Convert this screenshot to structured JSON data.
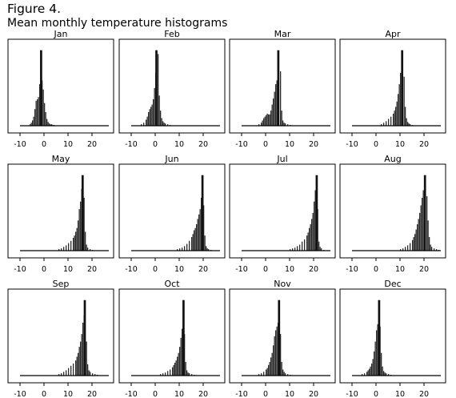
{
  "figure": {
    "label": "Figure 4.",
    "title": "Mean monthly temperature histograms"
  },
  "colors": {
    "bar": "#2b2b2b",
    "frame": "#000000",
    "baseline": "#000000"
  },
  "chart_data": {
    "type": "bar",
    "layout": "small-multiples",
    "x_ticks": [
      -10,
      0,
      10,
      20
    ],
    "x_tick_labels": [
      "-10",
      "0",
      "10",
      "20"
    ],
    "xlim": [
      -15,
      29
    ],
    "baseline_range": [
      -10,
      27
    ],
    "bin_width": 0.5,
    "ylim": [
      0,
      1.05
    ],
    "value_scale": "relative frequency (peak = 1.0, estimated)",
    "xlabel": "",
    "ylabel": "",
    "panels": [
      {
        "title": "Jan",
        "peak_x": -1.2,
        "peak_h": 1.0,
        "bins": [
          [
            -6.0,
            0.02
          ],
          [
            -5.5,
            0.04
          ],
          [
            -5.0,
            0.07
          ],
          [
            -4.5,
            0.12
          ],
          [
            -4.0,
            0.22
          ],
          [
            -3.5,
            0.33
          ],
          [
            -3.0,
            0.35
          ],
          [
            -2.5,
            0.38
          ],
          [
            -2.0,
            0.55
          ],
          [
            -1.5,
            0.72
          ],
          [
            -1.0,
            0.6
          ],
          [
            -0.5,
            0.48
          ],
          [
            0.0,
            0.3
          ],
          [
            0.5,
            0.18
          ],
          [
            1.0,
            0.09
          ],
          [
            1.5,
            0.05
          ],
          [
            2.0,
            0.03
          ],
          [
            2.5,
            0.02
          ],
          [
            3.0,
            0.02
          ],
          [
            3.5,
            0.01
          ],
          [
            4.0,
            0.01
          ]
        ]
      },
      {
        "title": "Feb",
        "peak_x": 0.5,
        "peak_h": 1.0,
        "bins": [
          [
            -6.0,
            0.02
          ],
          [
            -5.0,
            0.04
          ],
          [
            -4.0,
            0.08
          ],
          [
            -3.5,
            0.12
          ],
          [
            -3.0,
            0.18
          ],
          [
            -2.5,
            0.22
          ],
          [
            -2.0,
            0.25
          ],
          [
            -1.5,
            0.28
          ],
          [
            -1.0,
            0.35
          ],
          [
            -0.5,
            0.5
          ],
          [
            0.0,
            0.7
          ],
          [
            1.0,
            0.95
          ],
          [
            1.5,
            0.4
          ],
          [
            2.0,
            0.2
          ],
          [
            2.5,
            0.1
          ],
          [
            3.0,
            0.06
          ],
          [
            3.5,
            0.04
          ],
          [
            4.0,
            0.03
          ],
          [
            5.0,
            0.02
          ],
          [
            6.0,
            0.01
          ]
        ]
      },
      {
        "title": "Mar",
        "peak_x": 5.3,
        "peak_h": 1.0,
        "bins": [
          [
            -3.0,
            0.02
          ],
          [
            -2.0,
            0.04
          ],
          [
            -1.5,
            0.07
          ],
          [
            -1.0,
            0.1
          ],
          [
            -0.5,
            0.12
          ],
          [
            0.0,
            0.14
          ],
          [
            0.5,
            0.16
          ],
          [
            1.0,
            0.15
          ],
          [
            1.5,
            0.15
          ],
          [
            2.0,
            0.2
          ],
          [
            2.5,
            0.28
          ],
          [
            3.0,
            0.36
          ],
          [
            3.5,
            0.45
          ],
          [
            4.0,
            0.55
          ],
          [
            4.5,
            0.6
          ],
          [
            5.0,
            0.85
          ],
          [
            6.0,
            0.72
          ],
          [
            6.5,
            0.2
          ],
          [
            7.0,
            0.07
          ],
          [
            7.5,
            0.04
          ],
          [
            8.0,
            0.03
          ],
          [
            9.0,
            0.02
          ],
          [
            10.0,
            0.01
          ]
        ]
      },
      {
        "title": "Apr",
        "peak_x": 10.9,
        "peak_h": 1.0,
        "bins": [
          [
            2.0,
            0.02
          ],
          [
            3.0,
            0.04
          ],
          [
            4.0,
            0.06
          ],
          [
            5.0,
            0.09
          ],
          [
            6.0,
            0.12
          ],
          [
            7.0,
            0.16
          ],
          [
            7.5,
            0.2
          ],
          [
            8.0,
            0.25
          ],
          [
            8.5,
            0.32
          ],
          [
            9.0,
            0.42
          ],
          [
            9.5,
            0.55
          ],
          [
            10.0,
            0.7
          ],
          [
            10.5,
            0.75
          ],
          [
            11.5,
            0.65
          ],
          [
            12.0,
            0.25
          ],
          [
            12.5,
            0.1
          ],
          [
            13.0,
            0.05
          ],
          [
            13.5,
            0.03
          ],
          [
            14.0,
            0.02
          ],
          [
            15.0,
            0.01
          ]
        ]
      },
      {
        "title": "May",
        "peak_x": 16.1,
        "peak_h": 1.0,
        "bins": [
          [
            6.0,
            0.02
          ],
          [
            7.0,
            0.03
          ],
          [
            8.0,
            0.05
          ],
          [
            9.0,
            0.07
          ],
          [
            10.0,
            0.1
          ],
          [
            11.0,
            0.13
          ],
          [
            12.0,
            0.17
          ],
          [
            12.5,
            0.2
          ],
          [
            13.0,
            0.25
          ],
          [
            13.5,
            0.3
          ],
          [
            14.0,
            0.4
          ],
          [
            14.5,
            0.55
          ],
          [
            15.0,
            0.65
          ],
          [
            15.5,
            0.82
          ],
          [
            16.5,
            0.7
          ],
          [
            17.0,
            0.25
          ],
          [
            17.5,
            0.08
          ],
          [
            18.0,
            0.04
          ],
          [
            19.0,
            0.02
          ],
          [
            20.0,
            0.01
          ]
        ]
      },
      {
        "title": "Jun",
        "peak_x": 19.7,
        "peak_h": 1.0,
        "bins": [
          [
            9.0,
            0.02
          ],
          [
            10.0,
            0.03
          ],
          [
            11.0,
            0.04
          ],
          [
            12.0,
            0.06
          ],
          [
            13.0,
            0.09
          ],
          [
            14.0,
            0.13
          ],
          [
            15.0,
            0.18
          ],
          [
            15.5,
            0.22
          ],
          [
            16.0,
            0.27
          ],
          [
            16.5,
            0.3
          ],
          [
            17.0,
            0.35
          ],
          [
            17.5,
            0.42
          ],
          [
            18.0,
            0.48
          ],
          [
            18.5,
            0.55
          ],
          [
            19.0,
            0.7
          ],
          [
            19.5,
            0.85
          ],
          [
            20.0,
            0.6
          ],
          [
            20.5,
            0.2
          ],
          [
            21.0,
            0.06
          ],
          [
            21.5,
            0.03
          ],
          [
            22.0,
            0.02
          ],
          [
            23.0,
            0.01
          ]
        ]
      },
      {
        "title": "Jul",
        "peak_x": 21.3,
        "peak_h": 1.0,
        "bins": [
          [
            10.0,
            0.02
          ],
          [
            11.0,
            0.03
          ],
          [
            12.0,
            0.04
          ],
          [
            13.0,
            0.06
          ],
          [
            14.0,
            0.08
          ],
          [
            15.0,
            0.12
          ],
          [
            16.0,
            0.15
          ],
          [
            17.0,
            0.2
          ],
          [
            17.5,
            0.24
          ],
          [
            18.0,
            0.3
          ],
          [
            18.5,
            0.35
          ],
          [
            19.0,
            0.42
          ],
          [
            19.5,
            0.5
          ],
          [
            20.0,
            0.65
          ],
          [
            20.5,
            0.8
          ],
          [
            21.0,
            0.85
          ],
          [
            21.5,
            0.55
          ],
          [
            22.0,
            0.12
          ],
          [
            22.5,
            0.05
          ],
          [
            23.0,
            0.03
          ],
          [
            24.0,
            0.01
          ]
        ]
      },
      {
        "title": "Aug",
        "peak_x": 20.4,
        "peak_h": 1.0,
        "bins": [
          [
            10.0,
            0.02
          ],
          [
            11.0,
            0.03
          ],
          [
            12.0,
            0.05
          ],
          [
            13.0,
            0.07
          ],
          [
            14.0,
            0.1
          ],
          [
            15.0,
            0.14
          ],
          [
            15.5,
            0.18
          ],
          [
            16.0,
            0.22
          ],
          [
            16.5,
            0.28
          ],
          [
            17.0,
            0.35
          ],
          [
            17.5,
            0.42
          ],
          [
            18.0,
            0.5
          ],
          [
            18.5,
            0.6
          ],
          [
            19.0,
            0.7
          ],
          [
            19.5,
            0.8
          ],
          [
            20.0,
            0.9
          ],
          [
            21.0,
            0.72
          ],
          [
            21.5,
            0.4
          ],
          [
            22.0,
            0.18
          ],
          [
            22.5,
            0.08
          ],
          [
            23.0,
            0.05
          ],
          [
            24.0,
            0.03
          ],
          [
            25.0,
            0.02
          ],
          [
            26.0,
            0.01
          ]
        ]
      },
      {
        "title": "Sep",
        "peak_x": 17.0,
        "peak_h": 1.0,
        "bins": [
          [
            6.0,
            0.02
          ],
          [
            7.0,
            0.03
          ],
          [
            8.0,
            0.05
          ],
          [
            9.0,
            0.07
          ],
          [
            10.0,
            0.1
          ],
          [
            11.0,
            0.13
          ],
          [
            12.0,
            0.16
          ],
          [
            13.0,
            0.2
          ],
          [
            13.5,
            0.25
          ],
          [
            14.0,
            0.3
          ],
          [
            14.5,
            0.38
          ],
          [
            15.0,
            0.45
          ],
          [
            15.5,
            0.55
          ],
          [
            16.0,
            0.7
          ],
          [
            16.5,
            0.8
          ],
          [
            17.5,
            0.45
          ],
          [
            18.0,
            0.15
          ],
          [
            18.5,
            0.07
          ],
          [
            19.0,
            0.05
          ],
          [
            20.0,
            0.03
          ],
          [
            21.0,
            0.02
          ],
          [
            22.0,
            0.01
          ]
        ]
      },
      {
        "title": "Oct",
        "peak_x": 11.8,
        "peak_h": 1.0,
        "bins": [
          [
            2.0,
            0.02
          ],
          [
            3.0,
            0.03
          ],
          [
            4.0,
            0.04
          ],
          [
            5.0,
            0.06
          ],
          [
            6.0,
            0.08
          ],
          [
            7.0,
            0.11
          ],
          [
            7.5,
            0.14
          ],
          [
            8.0,
            0.17
          ],
          [
            8.5,
            0.2
          ],
          [
            9.0,
            0.25
          ],
          [
            9.5,
            0.3
          ],
          [
            10.0,
            0.38
          ],
          [
            10.5,
            0.5
          ],
          [
            11.0,
            0.62
          ],
          [
            11.5,
            0.75
          ],
          [
            12.0,
            0.55
          ],
          [
            12.5,
            0.18
          ],
          [
            13.0,
            0.07
          ],
          [
            13.5,
            0.04
          ],
          [
            14.0,
            0.03
          ],
          [
            15.0,
            0.02
          ],
          [
            16.0,
            0.01
          ]
        ]
      },
      {
        "title": "Nov",
        "peak_x": 5.6,
        "peak_h": 1.0,
        "bins": [
          [
            -3.0,
            0.02
          ],
          [
            -2.0,
            0.03
          ],
          [
            -1.0,
            0.05
          ],
          [
            0.0,
            0.08
          ],
          [
            0.5,
            0.1
          ],
          [
            1.0,
            0.14
          ],
          [
            1.5,
            0.18
          ],
          [
            2.0,
            0.24
          ],
          [
            2.5,
            0.3
          ],
          [
            3.0,
            0.4
          ],
          [
            3.5,
            0.52
          ],
          [
            4.0,
            0.6
          ],
          [
            4.5,
            0.65
          ],
          [
            5.0,
            0.7
          ],
          [
            6.0,
            0.55
          ],
          [
            6.5,
            0.18
          ],
          [
            7.0,
            0.08
          ],
          [
            7.5,
            0.05
          ],
          [
            8.0,
            0.03
          ],
          [
            9.0,
            0.02
          ],
          [
            10.0,
            0.01
          ]
        ]
      },
      {
        "title": "Dec",
        "peak_x": 1.3,
        "peak_h": 1.0,
        "bins": [
          [
            -6.0,
            0.02
          ],
          [
            -5.0,
            0.03
          ],
          [
            -4.0,
            0.05
          ],
          [
            -3.5,
            0.07
          ],
          [
            -3.0,
            0.09
          ],
          [
            -2.5,
            0.12
          ],
          [
            -2.0,
            0.16
          ],
          [
            -1.5,
            0.22
          ],
          [
            -1.0,
            0.32
          ],
          [
            -0.5,
            0.45
          ],
          [
            0.0,
            0.6
          ],
          [
            0.5,
            0.68
          ],
          [
            1.0,
            0.72
          ],
          [
            1.5,
            0.65
          ],
          [
            2.0,
            0.3
          ],
          [
            2.5,
            0.12
          ],
          [
            3.0,
            0.06
          ],
          [
            3.5,
            0.04
          ],
          [
            4.0,
            0.03
          ],
          [
            5.0,
            0.02
          ],
          [
            6.0,
            0.01
          ]
        ]
      }
    ]
  }
}
